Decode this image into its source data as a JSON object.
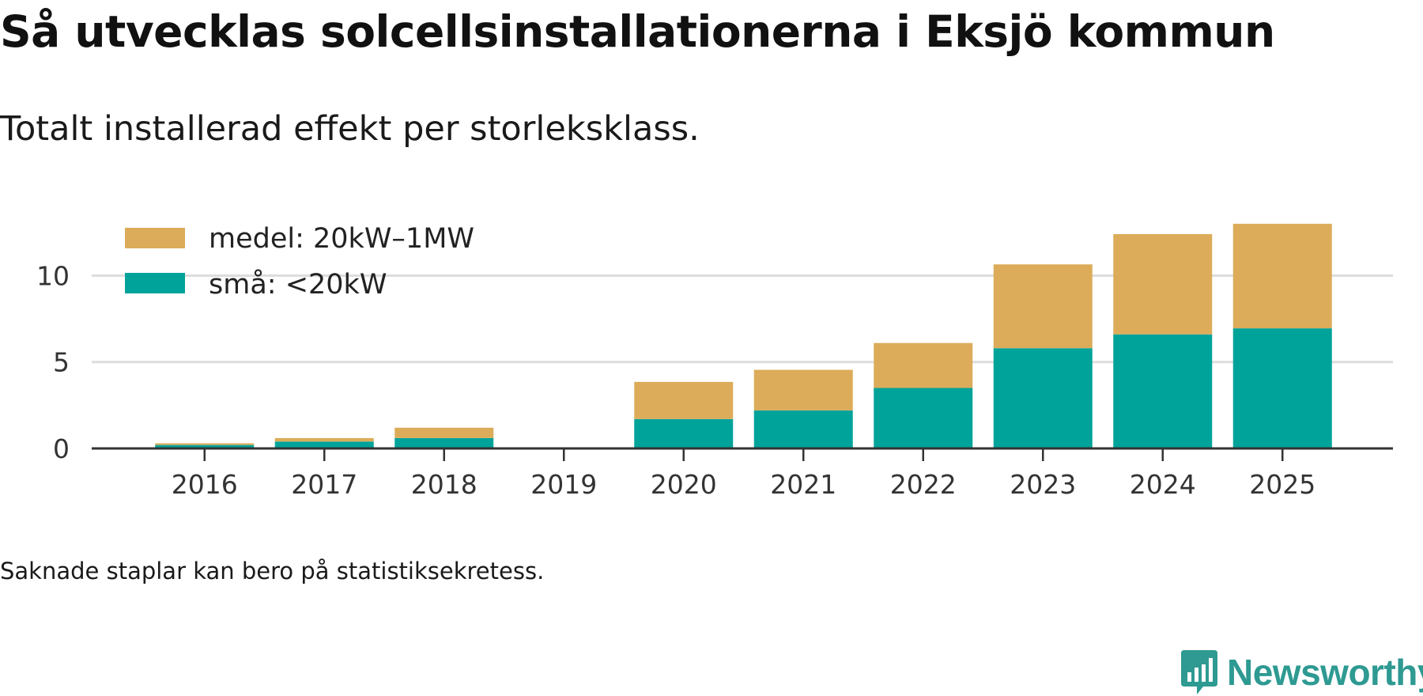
{
  "header": {
    "title": "Så utvecklas solcellsinstallationerna i Eksjö kommun",
    "subtitle": "Totalt installerad effekt per storleksklass."
  },
  "footer": {
    "note": "Saknade staplar kan bero på statistiksekretess.",
    "brand": "Newsworthy"
  },
  "colors": {
    "medel": "#dcac5a",
    "sma": "#00a39a",
    "grid": "#dddddd",
    "axis": "#333333",
    "brand": "#2e9a92"
  },
  "chart_data": {
    "type": "bar",
    "stacked": true,
    "categories": [
      "2016",
      "2017",
      "2018",
      "2019",
      "2020",
      "2021",
      "2022",
      "2023",
      "2024",
      "2025"
    ],
    "series": [
      {
        "name": "små: <20kW",
        "key": "sma",
        "values": [
          0.2,
          0.4,
          0.6,
          null,
          1.7,
          2.2,
          3.5,
          5.8,
          6.6,
          6.95
        ]
      },
      {
        "name": "medel: 20kW–1MW",
        "key": "medel",
        "values": [
          0.1,
          0.2,
          0.6,
          null,
          2.15,
          2.35,
          2.6,
          4.85,
          5.8,
          6.05
        ]
      }
    ],
    "legend_order": [
      "medel",
      "sma"
    ],
    "yticks": [
      0,
      5,
      10
    ],
    "ylim": [
      0,
      12.95
    ],
    "grid": true,
    "legend_position": "top-left"
  }
}
